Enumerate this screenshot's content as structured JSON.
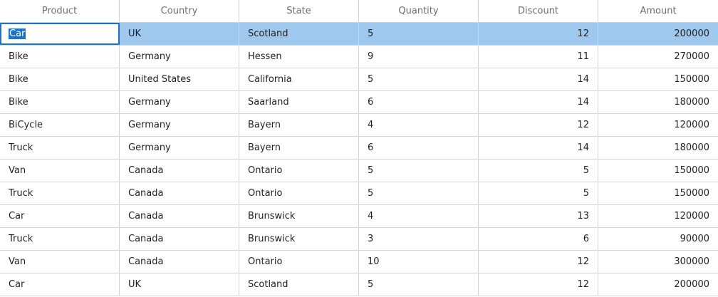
{
  "columns": [
    "Product",
    "Country",
    "State",
    "Quantity",
    "Discount",
    "Amount"
  ],
  "rows": [
    [
      "Car",
      "UK",
      "Scotland",
      "5",
      "12",
      "200000"
    ],
    [
      "Bike",
      "Germany",
      "Hessen",
      "9",
      "11",
      "270000"
    ],
    [
      "Bike",
      "United States",
      "California",
      "5",
      "14",
      "150000"
    ],
    [
      "Bike",
      "Germany",
      "Saarland",
      "6",
      "14",
      "180000"
    ],
    [
      "BiCycle",
      "Germany",
      "Bayern",
      "4",
      "12",
      "120000"
    ],
    [
      "Truck",
      "Germany",
      "Bayern",
      "6",
      "14",
      "180000"
    ],
    [
      "Van",
      "Canada",
      "Ontario",
      "5",
      "5",
      "150000"
    ],
    [
      "Truck",
      "Canada",
      "Ontario",
      "5",
      "5",
      "150000"
    ],
    [
      "Car",
      "Canada",
      "Brunswick",
      "4",
      "13",
      "120000"
    ],
    [
      "Truck",
      "Canada",
      "Brunswick",
      "3",
      "6",
      "90000"
    ],
    [
      "Van",
      "Canada",
      "Ontario",
      "10",
      "12",
      "300000"
    ],
    [
      "Car",
      "UK",
      "Scotland",
      "5",
      "12",
      "200000"
    ]
  ],
  "selected_row": 0,
  "colors": {
    "selection": "#9fc8ee",
    "focus": "#1a73c8",
    "grid_line": "#d6d6d6",
    "header_text": "#6e6e6e"
  }
}
